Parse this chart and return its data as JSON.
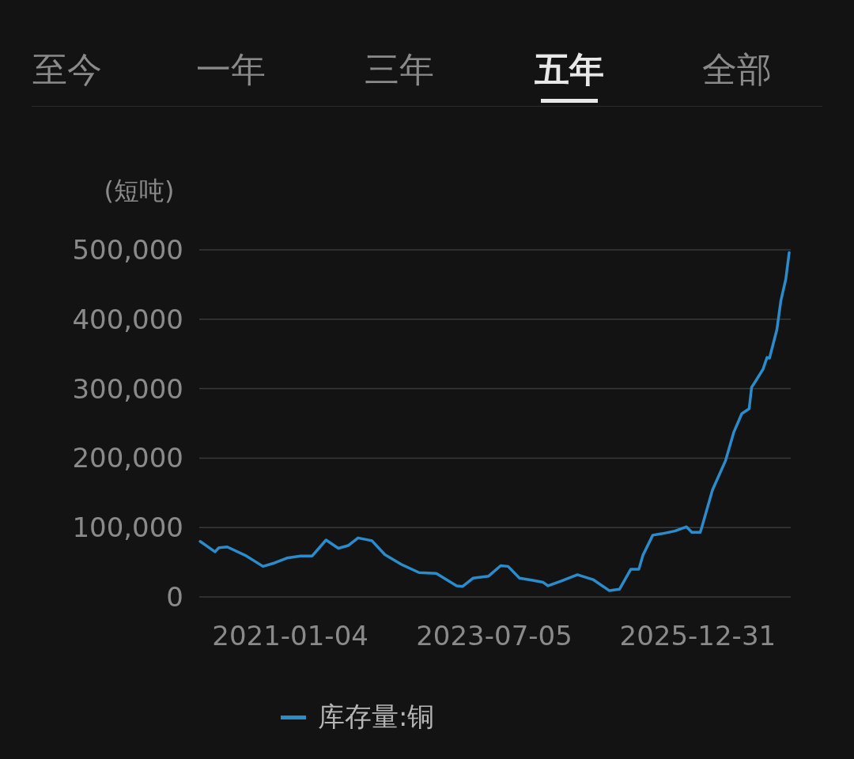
{
  "chart_data": {
    "type": "line",
    "ylabel": "(短吨)",
    "annotations": [
      "至今",
      "一年",
      "三年",
      "**五年**",
      "全部"
    ],
    "x": [
      "2019-11-28",
      "2020-02-02",
      "2020-02-20",
      "2020-03-28",
      "2020-06-16",
      "2020-09-04",
      "2020-10-26",
      "2020-12-20",
      "2021-02-20",
      "2021-04-12",
      "2021-06-13",
      "2021-08-07",
      "2021-09-20",
      "2021-11-03",
      "2022-01-04",
      "2022-03-03",
      "2022-05-15",
      "2022-08-03",
      "2022-10-19",
      "2023-01-18",
      "2023-02-13",
      "2023-04-01",
      "2023-06-10",
      "2023-08-03",
      "2023-09-05",
      "2023-10-26",
      "2023-12-24",
      "2024-02-09",
      "2024-03-02",
      "2024-04-30",
      "2024-07-11",
      "2024-09-19",
      "2024-12-01",
      "2025-01-15",
      "2025-03-07",
      "2025-04-12",
      "2025-04-30",
      "2025-06-13",
      "2025-07-23",
      "2025-09-20",
      "2025-11-10",
      "2025-12-05",
      "2026-01-11",
      "2026-01-18",
      "2026-03-07",
      "2026-05-04",
      "2026-06-10",
      "2026-07-16",
      "2026-08-18",
      "2026-08-29",
      "2026-09-16",
      "2026-10-19",
      "2026-11-06",
      "2026-11-17",
      "2026-12-20",
      "2027-01-07",
      "2027-01-29",
      "2027-02-13"
    ],
    "series": [
      {
        "name": "库存量:铜",
        "color": "#2b8ccc",
        "values": [
          80000,
          65000,
          71000,
          72000,
          60000,
          44000,
          49000,
          56000,
          59000,
          59000,
          82000,
          70000,
          74000,
          85000,
          81000,
          61000,
          47000,
          35000,
          34000,
          16000,
          15000,
          27000,
          30000,
          45000,
          44000,
          27000,
          24000,
          21000,
          16000,
          23000,
          32000,
          25000,
          9000,
          11000,
          40000,
          40000,
          60000,
          89000,
          91000,
          95000,
          101000,
          93000,
          93000,
          100000,
          154000,
          196000,
          237000,
          264000,
          271000,
          302000,
          311000,
          328000,
          345000,
          344000,
          385000,
          427000,
          458000,
          496000
        ]
      }
    ],
    "xlim": [
      "2019-11-24",
      "2027-02-20"
    ],
    "xticks": [
      "2021-01-04",
      "2023-07-05",
      "2025-12-31"
    ],
    "ylim": [
      0,
      500000
    ],
    "yticks": [
      0,
      {
        "value": 100000,
        "label": "100,000"
      },
      {
        "value": 200000,
        "label": "200,000"
      },
      {
        "value": 300000,
        "label": "300,000"
      },
      {
        "value": 400000,
        "label": "400,000"
      },
      {
        "value": 500000,
        "label": "500,000"
      }
    ],
    "grid": "y",
    "legend": "bottom"
  }
}
